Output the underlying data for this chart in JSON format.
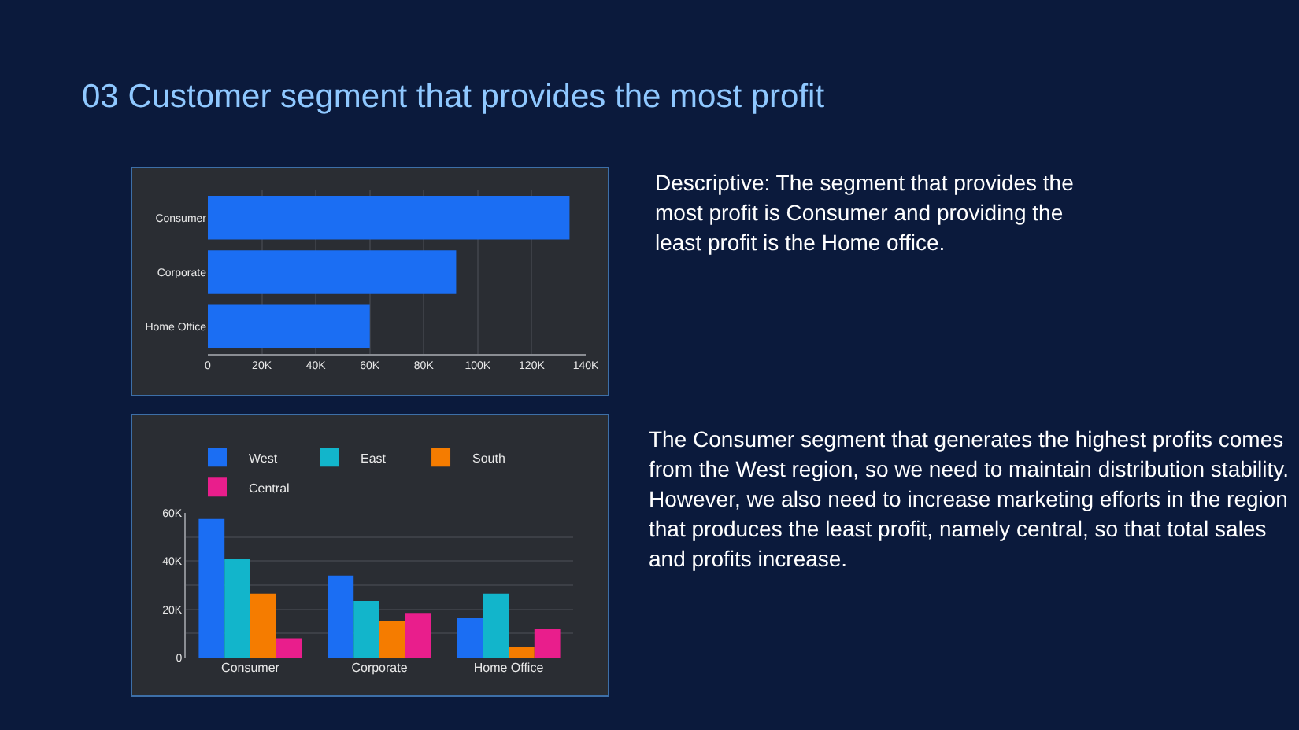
{
  "chart_data": [
    {
      "type": "bar",
      "title": "03 Customer segment that provides the most profit",
      "orientation": "horizontal",
      "annotations": [
        "Descriptive: The segment that provides the most profit is Consumer and providing the least profit is the Home office."
      ],
      "categories": [
        "Consumer",
        "Corporate",
        "Home Office"
      ],
      "values": [
        134000,
        92000,
        60000
      ],
      "color": "#1b6ef3",
      "xlim": [
        0,
        140000
      ],
      "xticks": [
        0,
        {
          "value": 20000,
          "label": "20K"
        },
        {
          "value": 40000,
          "label": "40K"
        },
        {
          "value": 60000,
          "label": "60K"
        },
        {
          "value": 80000,
          "label": "80K"
        },
        {
          "value": 100000,
          "label": "100K"
        },
        {
          "value": 120000,
          "label": "120K"
        },
        {
          "value": 140000,
          "label": "140K"
        }
      ],
      "grid": "x",
      "legend": false
    },
    {
      "type": "bar",
      "annotations": [
        "The Consumer segment that generates the highest profits comes from the West region, so we need to maintain distribution stability. However, we also need to increase marketing efforts in the region that produces the least profit, namely central, so that total sales and profits increase."
      ],
      "categories": [
        "Consumer",
        "Corporate",
        "Home Office"
      ],
      "series": [
        {
          "name": "West",
          "color": "#1b6ef3",
          "values": [
            57500,
            34000,
            16500
          ]
        },
        {
          "name": "East",
          "color": "#12b5cb",
          "values": [
            41000,
            23500,
            26500
          ]
        },
        {
          "name": "South",
          "color": "#f57c00",
          "values": [
            26500,
            15000,
            4500
          ]
        },
        {
          "name": "Central",
          "color": "#e91e8c",
          "values": [
            8000,
            18500,
            12000
          ]
        }
      ],
      "ylim": [
        0,
        60000
      ],
      "yticks": [
        0,
        {
          "value": 10000,
          "label": null
        },
        {
          "value": 20000,
          "label": "20K"
        },
        {
          "value": 30000,
          "label": null
        },
        {
          "value": 40000,
          "label": "40K"
        },
        {
          "value": 50000,
          "label": null
        },
        {
          "value": 60000,
          "label": "60K"
        }
      ],
      "grid": "y",
      "legend": "top left"
    }
  ]
}
